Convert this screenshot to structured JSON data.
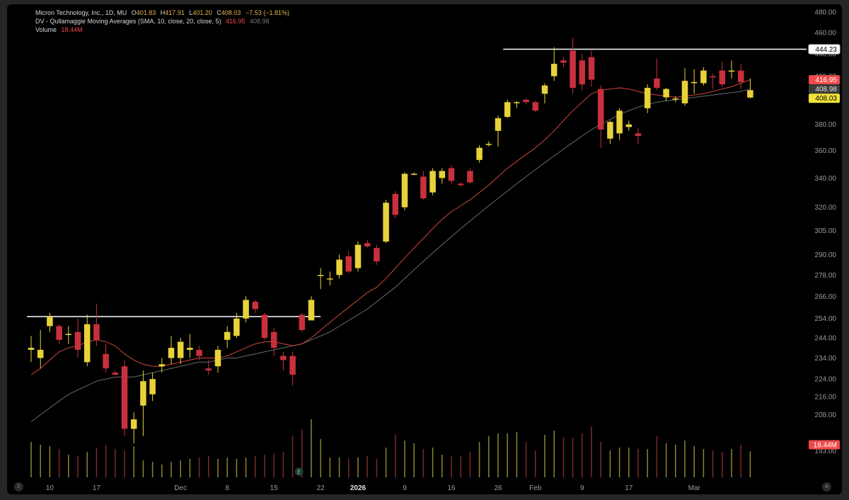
{
  "legend": {
    "symbol_line": "Micron Technology, Inc., 1D, MU",
    "open_label": "O",
    "open": "401.83",
    "high_label": "H",
    "high": "417.91",
    "low_label": "L",
    "low": "401.20",
    "close_label": "C",
    "close": "408.03",
    "change": "−7.53 (−1.81%)",
    "ma_name": "DV - Qullamaggie Moving Averages (SMA, 10, close, 20, close, 5)",
    "ma_fast": "416.95",
    "ma_slow": "408.98",
    "volume_label": "Volume",
    "volume_value": "18.44M"
  },
  "corner_buttons": {
    "left": "Z",
    "right": "A"
  },
  "earnings_marker": "E",
  "colors": {
    "up": "#e8d23a",
    "down": "#c8303c",
    "ma_fast": "#d0453a",
    "ma_slow": "#6a6a6a",
    "level_line": "#ffffff",
    "badge_red": "#ef4a4a",
    "badge_grey": "#3a3a3a",
    "badge_yellow": "#f3e33a"
  },
  "chart_data": {
    "type": "candlestick",
    "title": "Micron Technology, Inc., 1D, MU",
    "x_ticks": [
      {
        "label": "10",
        "index": 2
      },
      {
        "label": "17",
        "index": 7
      },
      {
        "label": "Dec",
        "index": 16
      },
      {
        "label": "8",
        "index": 21
      },
      {
        "label": "15",
        "index": 26
      },
      {
        "label": "22",
        "index": 31
      },
      {
        "label": "2026",
        "index": 35
      },
      {
        "label": "9",
        "index": 40
      },
      {
        "label": "16",
        "index": 45
      },
      {
        "label": "26",
        "index": 50
      },
      {
        "label": "Feb",
        "index": 54
      },
      {
        "label": "9",
        "index": 59
      },
      {
        "label": "17",
        "index": 64
      },
      {
        "label": "Mar",
        "index": 71
      }
    ],
    "y_ticks": [
      193,
      208,
      216,
      224,
      234,
      244,
      254,
      266,
      278,
      290,
      305,
      320,
      340,
      360,
      380,
      400,
      420,
      440,
      460,
      480
    ],
    "y_scale": "log",
    "ylim": [
      187,
      482
    ],
    "candles": [
      {
        "o": 238,
        "h": 245,
        "l": 232,
        "c": 239
      },
      {
        "o": 234,
        "h": 248,
        "l": 229,
        "c": 238
      },
      {
        "o": 250,
        "h": 257,
        "l": 247,
        "c": 255
      },
      {
        "o": 250,
        "h": 251,
        "l": 241,
        "c": 243
      },
      {
        "o": 246,
        "h": 250,
        "l": 241,
        "c": 246
      },
      {
        "o": 247,
        "h": 254,
        "l": 234,
        "c": 238
      },
      {
        "o": 232,
        "h": 256,
        "l": 230,
        "c": 251
      },
      {
        "o": 251,
        "h": 262,
        "l": 240,
        "c": 243
      },
      {
        "o": 236,
        "h": 241,
        "l": 227,
        "c": 229
      },
      {
        "o": 227,
        "h": 228,
        "l": 226,
        "c": 226
      },
      {
        "o": 230,
        "h": 233,
        "l": 199,
        "c": 202
      },
      {
        "o": 202,
        "h": 209,
        "l": 196,
        "c": 206
      },
      {
        "o": 212,
        "h": 228,
        "l": 199,
        "c": 223
      },
      {
        "o": 217,
        "h": 227,
        "l": 214,
        "c": 224
      },
      {
        "o": 230,
        "h": 234,
        "l": 227,
        "c": 231
      },
      {
        "o": 234,
        "h": 245,
        "l": 231,
        "c": 239
      },
      {
        "o": 234,
        "h": 244,
        "l": 231,
        "c": 242
      },
      {
        "o": 238,
        "h": 246,
        "l": 234,
        "c": 239
      },
      {
        "o": 238,
        "h": 240,
        "l": 233,
        "c": 235
      },
      {
        "o": 229,
        "h": 233,
        "l": 226,
        "c": 228
      },
      {
        "o": 230,
        "h": 240,
        "l": 227,
        "c": 238
      },
      {
        "o": 243,
        "h": 250,
        "l": 239,
        "c": 247
      },
      {
        "o": 245,
        "h": 257,
        "l": 244,
        "c": 254
      },
      {
        "o": 254,
        "h": 266,
        "l": 252,
        "c": 264
      },
      {
        "o": 263,
        "h": 264,
        "l": 257,
        "c": 259
      },
      {
        "o": 256,
        "h": 257,
        "l": 243,
        "c": 244
      },
      {
        "o": 247,
        "h": 249,
        "l": 235,
        "c": 239
      },
      {
        "o": 235,
        "h": 237,
        "l": 228,
        "c": 233
      },
      {
        "o": 235,
        "h": 237,
        "l": 221,
        "c": 226
      },
      {
        "o": 256,
        "h": 257,
        "l": 247,
        "c": 248
      },
      {
        "o": 253,
        "h": 266,
        "l": 253,
        "c": 264
      },
      {
        "o": 278,
        "h": 282,
        "l": 270,
        "c": 278
      },
      {
        "o": 276,
        "h": 280,
        "l": 272,
        "c": 276
      },
      {
        "o": 278,
        "h": 290,
        "l": 276,
        "c": 287
      },
      {
        "o": 289,
        "h": 292,
        "l": 279,
        "c": 280
      },
      {
        "o": 282,
        "h": 298,
        "l": 280,
        "c": 296
      },
      {
        "o": 297,
        "h": 299,
        "l": 294,
        "c": 295
      },
      {
        "o": 294,
        "h": 296,
        "l": 284,
        "c": 286
      },
      {
        "o": 298,
        "h": 325,
        "l": 297,
        "c": 323
      },
      {
        "o": 329,
        "h": 331,
        "l": 313,
        "c": 315
      },
      {
        "o": 320,
        "h": 344,
        "l": 318,
        "c": 343
      },
      {
        "o": 343,
        "h": 344,
        "l": 342,
        "c": 343
      },
      {
        "o": 341,
        "h": 345,
        "l": 325,
        "c": 326
      },
      {
        "o": 330,
        "h": 347,
        "l": 328,
        "c": 345
      },
      {
        "o": 340,
        "h": 347,
        "l": 336,
        "c": 345
      },
      {
        "o": 347,
        "h": 349,
        "l": 336,
        "c": 338
      },
      {
        "o": 336,
        "h": 337,
        "l": 334,
        "c": 335
      },
      {
        "o": 345,
        "h": 347,
        "l": 336,
        "c": 337
      },
      {
        "o": 353,
        "h": 364,
        "l": 351,
        "c": 362
      },
      {
        "o": 365,
        "h": 367,
        "l": 363,
        "c": 365
      },
      {
        "o": 375,
        "h": 387,
        "l": 363,
        "c": 385
      },
      {
        "o": 386,
        "h": 400,
        "l": 385,
        "c": 398
      },
      {
        "o": 398,
        "h": 399,
        "l": 393,
        "c": 398
      },
      {
        "o": 400,
        "h": 401,
        "l": 396,
        "c": 398
      },
      {
        "o": 398,
        "h": 399,
        "l": 390,
        "c": 391
      },
      {
        "o": 405,
        "h": 414,
        "l": 397,
        "c": 412
      },
      {
        "o": 420,
        "h": 446,
        "l": 416,
        "c": 431
      },
      {
        "o": 434,
        "h": 437,
        "l": 428,
        "c": 432
      },
      {
        "o": 443,
        "h": 455,
        "l": 405,
        "c": 410
      },
      {
        "o": 434,
        "h": 440,
        "l": 408,
        "c": 413
      },
      {
        "o": 437,
        "h": 443,
        "l": 411,
        "c": 417
      },
      {
        "o": 409,
        "h": 412,
        "l": 362,
        "c": 376
      },
      {
        "o": 369,
        "h": 383,
        "l": 365,
        "c": 382
      },
      {
        "o": 373,
        "h": 393,
        "l": 368,
        "c": 391
      },
      {
        "o": 378,
        "h": 383,
        "l": 375,
        "c": 380
      },
      {
        "o": 373,
        "h": 377,
        "l": 365,
        "c": 371
      },
      {
        "o": 393,
        "h": 413,
        "l": 389,
        "c": 410
      },
      {
        "o": 418,
        "h": 436,
        "l": 408,
        "c": 410
      },
      {
        "o": 402,
        "h": 410,
        "l": 399,
        "c": 409
      },
      {
        "o": 401,
        "h": 403,
        "l": 398,
        "c": 401
      },
      {
        "o": 397,
        "h": 427,
        "l": 395,
        "c": 416
      },
      {
        "o": 414,
        "h": 426,
        "l": 405,
        "c": 415
      },
      {
        "o": 414,
        "h": 428,
        "l": 412,
        "c": 425
      },
      {
        "o": 420,
        "h": 422,
        "l": 409,
        "c": 419
      },
      {
        "o": 425,
        "h": 433,
        "l": 411,
        "c": 413
      },
      {
        "o": 424,
        "h": 434,
        "l": 418,
        "c": 425
      },
      {
        "o": 425,
        "h": 431,
        "l": 409,
        "c": 415
      },
      {
        "o": 401.83,
        "h": 417.91,
        "l": 401.2,
        "c": 408.03
      }
    ],
    "ma_fast": [
      226,
      229,
      233,
      237,
      239,
      240,
      242,
      243,
      242,
      240,
      236,
      233,
      231,
      230,
      230,
      231,
      232,
      233,
      234,
      234,
      234,
      235,
      237,
      239,
      241,
      242,
      242,
      241,
      240,
      241,
      244,
      248,
      252,
      256,
      260,
      264,
      268,
      271,
      276,
      282,
      288,
      294,
      300,
      306,
      312,
      317,
      321,
      325,
      330,
      335,
      341,
      347,
      352,
      357,
      362,
      368,
      375,
      383,
      391,
      398,
      405,
      408,
      409,
      410,
      409,
      407,
      405,
      404,
      403,
      402,
      403,
      404,
      405,
      407,
      409,
      411,
      414,
      416.95
    ],
    "ma_slow": [
      205,
      208,
      211,
      214,
      217,
      219,
      221,
      223,
      224,
      225,
      225,
      225,
      226,
      227,
      228,
      229,
      230,
      231,
      232,
      232,
      233,
      234,
      234,
      235,
      236,
      237,
      238,
      239,
      240,
      241,
      243,
      245,
      247,
      250,
      253,
      256,
      259,
      263,
      267,
      271,
      276,
      281,
      286,
      291,
      296,
      301,
      306,
      311,
      316,
      321,
      326,
      331,
      336,
      341,
      346,
      351,
      356,
      361,
      366,
      371,
      376,
      380,
      384,
      388,
      391,
      394,
      396,
      398,
      399,
      400,
      401,
      402,
      403,
      404,
      405,
      406,
      407,
      408.98
    ],
    "volume": [
      25,
      23,
      22,
      20,
      16,
      15,
      18,
      21,
      23,
      20,
      19,
      22,
      12,
      11,
      9,
      11,
      12,
      13,
      14,
      15,
      13,
      14,
      13,
      14,
      15,
      16,
      17,
      18,
      29,
      34,
      41,
      27,
      14,
      14,
      13,
      14,
      15,
      13,
      21,
      30,
      26,
      24,
      20,
      21,
      16,
      15,
      15,
      18,
      25,
      29,
      31,
      31,
      32,
      25,
      19,
      30,
      33,
      28,
      28,
      31,
      36,
      25,
      19,
      21,
      21,
      20,
      20,
      29,
      24,
      23,
      26,
      22,
      20,
      19,
      18,
      20,
      23,
      18.44
    ],
    "volume_ylim": [
      0,
      90
    ],
    "level_lines": [
      {
        "value": 255,
        "from_index": 0,
        "to_index": 31
      },
      {
        "value": 444.23,
        "from_index": 51,
        "to_index": 77,
        "label": "444.23"
      }
    ],
    "price_badges": [
      {
        "label": "416.95",
        "value": 416.95,
        "style": "red"
      },
      {
        "label": "408.98",
        "value": 408.98,
        "style": "grey"
      },
      {
        "label": "408.03",
        "value": 408.03,
        "style": "yellow"
      }
    ],
    "volume_badge": "18.44M",
    "grid": false,
    "legend_position": "top-left"
  }
}
